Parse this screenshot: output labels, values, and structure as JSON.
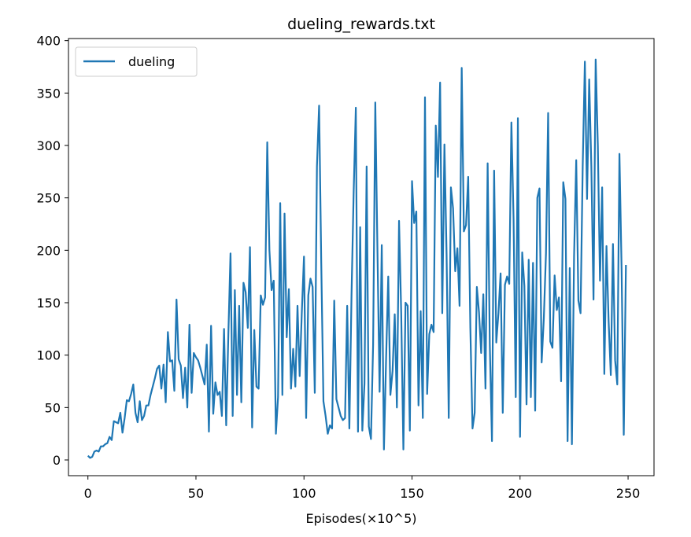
{
  "chart_data": {
    "type": "line",
    "title": "dueling_rewards.txt",
    "xlabel": "Episodes(×10^5)",
    "ylabel": "",
    "xlim": [
      -9,
      262
    ],
    "ylim": [
      -15,
      402
    ],
    "xticks": [
      0,
      50,
      100,
      150,
      200,
      250
    ],
    "yticks": [
      0,
      50,
      100,
      150,
      200,
      250,
      300,
      350,
      400
    ],
    "grid": false,
    "legend_position": "upper-left",
    "series": [
      {
        "name": "dueling",
        "color": "#1f77b4",
        "x_start": 0,
        "x_step": 1,
        "values": [
          4,
          2,
          3,
          8,
          9,
          8,
          13,
          13,
          15,
          16,
          22,
          19,
          37,
          36,
          35,
          45,
          26,
          40,
          57,
          56,
          63,
          72,
          45,
          36,
          56,
          38,
          42,
          52,
          52,
          62,
          70,
          78,
          87,
          90,
          68,
          91,
          55,
          122,
          94,
          95,
          66,
          153,
          96,
          90,
          59,
          88,
          50,
          129,
          64,
          102,
          98,
          95,
          88,
          80,
          72,
          110,
          27,
          128,
          44,
          74,
          62,
          65,
          42,
          125,
          33,
          120,
          197,
          42,
          162,
          62,
          147,
          55,
          169,
          160,
          126,
          203,
          31,
          124,
          70,
          68,
          157,
          148,
          155,
          303,
          200,
          162,
          171,
          25,
          60,
          245,
          62,
          235,
          117,
          163,
          68,
          106,
          70,
          147,
          80,
          141,
          194,
          40,
          157,
          173,
          165,
          64,
          280,
          338,
          187,
          56,
          42,
          25,
          33,
          30,
          152,
          58,
          50,
          42,
          38,
          40,
          147,
          30,
          157,
          256,
          336,
          27,
          222,
          28,
          73,
          280,
          32,
          20,
          110,
          341,
          200,
          65,
          205,
          10,
          96,
          175,
          62,
          85,
          139,
          50,
          228,
          140,
          10,
          150,
          147,
          28,
          266,
          226,
          237,
          52,
          142,
          40,
          346,
          63,
          120,
          129,
          122,
          319,
          270,
          360,
          140,
          301,
          196,
          40,
          260,
          240,
          180,
          202,
          147,
          374,
          218,
          224,
          270,
          126,
          30,
          45,
          165,
          141,
          102,
          158,
          68,
          283,
          110,
          18,
          276,
          112,
          140,
          178,
          45,
          167,
          175,
          168,
          322,
          230,
          60,
          326,
          22,
          198,
          166,
          53,
          191,
          60,
          188,
          47,
          250,
          259,
          93,
          135,
          197,
          331,
          113,
          107,
          176,
          143,
          155,
          75,
          265,
          249,
          18,
          183,
          15,
          194,
          286,
          152,
          140,
          280,
          380,
          249,
          363,
          280,
          153,
          382,
          300,
          171,
          260,
          82,
          204,
          132,
          81,
          206,
          95,
          72,
          292,
          182,
          24,
          186
        ]
      }
    ]
  }
}
